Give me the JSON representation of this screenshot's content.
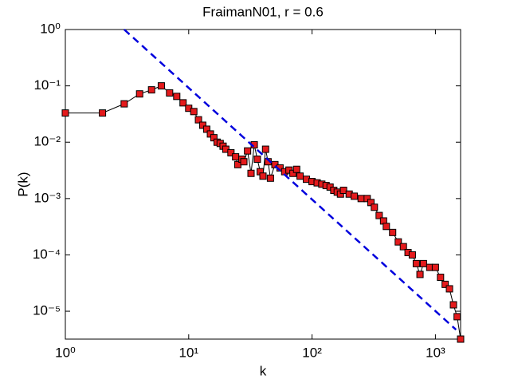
{
  "chart_data": {
    "type": "line",
    "title": "FraimanN01, r = 0.6",
    "x_label": "k",
    "y_label": "P(k)",
    "xscale": "log",
    "yscale": "log",
    "xlim": [
      1,
      1600
    ],
    "ylim": [
      3.2e-06,
      1
    ],
    "xticks": [
      {
        "value": 1,
        "label": "10⁰"
      },
      {
        "value": 10,
        "label": "10¹"
      },
      {
        "value": 100,
        "label": "10²"
      },
      {
        "value": 1000,
        "label": "10³"
      }
    ],
    "yticks": [
      {
        "value": 1e-05,
        "label": "10⁻⁵"
      },
      {
        "value": 0.0001,
        "label": "10⁻⁴"
      },
      {
        "value": 0.001,
        "label": "10⁻³"
      },
      {
        "value": 0.01,
        "label": "10⁻²"
      },
      {
        "value": 0.1,
        "label": "10⁻¹"
      },
      {
        "value": 1,
        "label": "10⁰"
      }
    ],
    "series": [
      {
        "color": "#000000",
        "marker_color": "#e41a1c",
        "marker": "square",
        "x": [
          1,
          2,
          3,
          4,
          5,
          6,
          7,
          8,
          9,
          10,
          11,
          12,
          13,
          14,
          15,
          16,
          17,
          18,
          19,
          20,
          22,
          24,
          25,
          27,
          28,
          30,
          32,
          34,
          36,
          38,
          40,
          42,
          44,
          46,
          50,
          55,
          60,
          65,
          70,
          75,
          80,
          90,
          100,
          110,
          120,
          130,
          140,
          150,
          160,
          170,
          180,
          200,
          220,
          250,
          280,
          300,
          320,
          350,
          380,
          400,
          450,
          500,
          550,
          600,
          650,
          700,
          750,
          800,
          900,
          1000,
          1100,
          1200,
          1300,
          1400,
          1500,
          1600
        ],
        "values": [
          0.033,
          0.033,
          0.048,
          0.072,
          0.085,
          0.1,
          0.075,
          0.065,
          0.05,
          0.04,
          0.035,
          0.025,
          0.02,
          0.017,
          0.014,
          0.012,
          0.01,
          0.0095,
          0.0085,
          0.0075,
          0.0065,
          0.0055,
          0.004,
          0.005,
          0.0045,
          0.007,
          0.0028,
          0.009,
          0.005,
          0.003,
          0.0025,
          0.0075,
          0.0045,
          0.0023,
          0.004,
          0.0035,
          0.003,
          0.0032,
          0.0028,
          0.0033,
          0.0025,
          0.0022,
          0.002,
          0.0019,
          0.0018,
          0.0017,
          0.0016,
          0.0014,
          0.0013,
          0.0012,
          0.0014,
          0.0012,
          0.0011,
          0.001,
          0.001,
          0.00085,
          0.0007,
          0.0005,
          0.0004,
          0.00032,
          0.00025,
          0.00017,
          0.00014,
          0.00011,
          0.0001,
          7e-05,
          4.5e-05,
          7e-05,
          6e-05,
          6e-05,
          4e-05,
          3e-05,
          2.5e-05,
          1.3e-05,
          8e-06,
          3.2e-06
        ]
      },
      {
        "color": "#0000dd",
        "dash": true,
        "x": [
          3,
          1470
        ],
        "values": [
          1,
          4.7e-06
        ]
      }
    ]
  }
}
